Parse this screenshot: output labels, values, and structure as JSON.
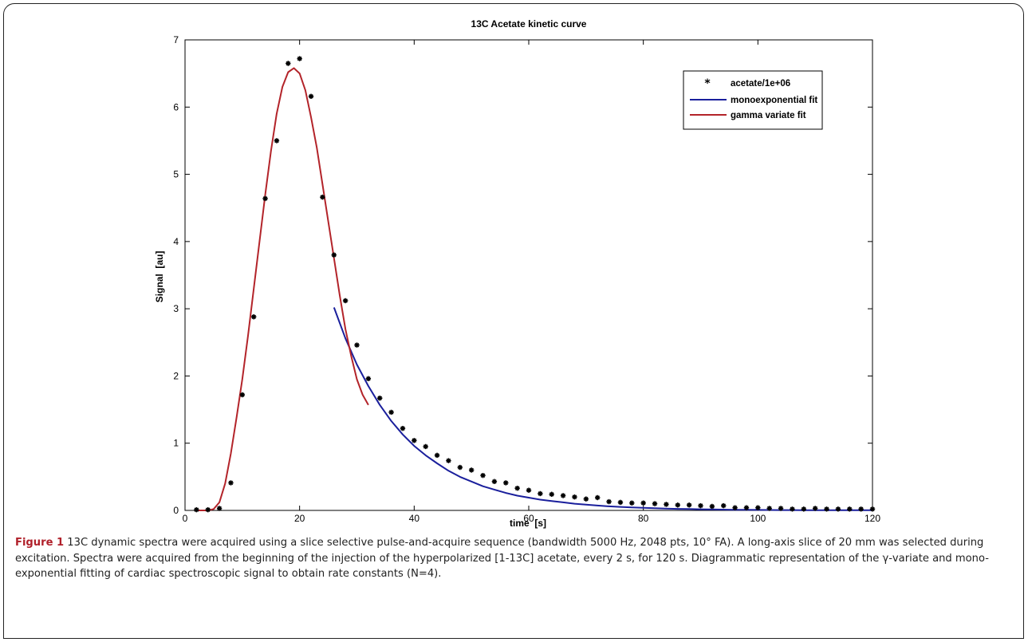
{
  "chart_data": {
    "type": "line",
    "title": "13C Acetate kinetic curve",
    "xlabel": "time  [s]",
    "ylabel": "Signal  [au]",
    "xlim": [
      0,
      120
    ],
    "ylim": [
      0,
      7
    ],
    "xticks": [
      "0",
      "20",
      "40",
      "60",
      "80",
      "100",
      "120"
    ],
    "yticks": [
      "0",
      "1",
      "2",
      "3",
      "4",
      "5",
      "6",
      "7"
    ],
    "grid": false,
    "legend_position": "top-right",
    "series": [
      {
        "name": "acetate/1e+06",
        "kind": "scatter",
        "marker": "asterisk",
        "color": "#000000",
        "x": [
          2,
          4,
          6,
          8,
          10,
          12,
          14,
          16,
          18,
          20,
          22,
          24,
          26,
          28,
          30,
          32,
          34,
          36,
          38,
          40,
          42,
          44,
          46,
          48,
          50,
          52,
          54,
          56,
          58,
          60,
          62,
          64,
          66,
          68,
          70,
          72,
          74,
          76,
          78,
          80,
          82,
          84,
          86,
          88,
          90,
          92,
          94,
          96,
          98,
          100,
          102,
          104,
          106,
          108,
          110,
          112,
          114,
          116,
          118,
          120
        ],
        "y": [
          0.01,
          0.01,
          0.03,
          0.41,
          1.72,
          2.88,
          4.64,
          5.5,
          6.65,
          6.72,
          6.16,
          4.66,
          3.8,
          3.12,
          2.46,
          1.96,
          1.67,
          1.46,
          1.22,
          1.04,
          0.95,
          0.82,
          0.74,
          0.64,
          0.6,
          0.52,
          0.43,
          0.41,
          0.33,
          0.3,
          0.25,
          0.24,
          0.22,
          0.2,
          0.17,
          0.19,
          0.13,
          0.12,
          0.11,
          0.11,
          0.1,
          0.09,
          0.08,
          0.08,
          0.07,
          0.06,
          0.07,
          0.04,
          0.04,
          0.04,
          0.03,
          0.03,
          0.02,
          0.02,
          0.03,
          0.02,
          0.02,
          0.02,
          0.02,
          0.02
        ]
      },
      {
        "name": "monoexponential fit",
        "kind": "line",
        "color": "#1a1f9c",
        "x": [
          26,
          28,
          30,
          32,
          34,
          36,
          38,
          40,
          42,
          44,
          46,
          48,
          50,
          52,
          54,
          56,
          58,
          60,
          62,
          64,
          66,
          68,
          70,
          72,
          74,
          76,
          78,
          80,
          82,
          84,
          86,
          88,
          90,
          92,
          94,
          96,
          98,
          100,
          102,
          104,
          106,
          108,
          110,
          112,
          114,
          116,
          118,
          120
        ],
        "y": [
          3.02,
          2.56,
          2.17,
          1.85,
          1.57,
          1.33,
          1.13,
          0.96,
          0.82,
          0.7,
          0.59,
          0.5,
          0.43,
          0.36,
          0.31,
          0.26,
          0.22,
          0.19,
          0.16,
          0.14,
          0.12,
          0.1,
          0.085,
          0.072,
          0.061,
          0.052,
          0.044,
          0.038,
          0.032,
          0.027,
          0.023,
          0.02,
          0.017,
          0.014,
          0.012,
          0.01,
          0.009,
          0.007,
          0.006,
          0.005,
          0.005,
          0.004,
          0.003,
          0.003,
          0.002,
          0.002,
          0.002,
          0.002
        ]
      },
      {
        "name": "gamma variate fit",
        "kind": "line",
        "color": "#b3242a",
        "x": [
          2,
          4,
          5,
          6,
          7,
          8,
          9,
          10,
          11,
          12,
          13,
          14,
          15,
          16,
          17,
          18,
          19,
          20,
          21,
          22,
          23,
          24,
          25,
          26,
          27,
          28,
          29,
          30,
          31,
          32
        ],
        "y": [
          0,
          0,
          0.02,
          0.12,
          0.4,
          0.85,
          1.38,
          1.95,
          2.6,
          3.3,
          4.0,
          4.7,
          5.35,
          5.9,
          6.3,
          6.52,
          6.58,
          6.5,
          6.25,
          5.85,
          5.4,
          4.85,
          4.3,
          3.75,
          3.2,
          2.7,
          2.3,
          1.95,
          1.72,
          1.57
        ]
      }
    ]
  },
  "caption": {
    "label": "Figure 1",
    "text": " 13C dynamic spectra were acquired using a slice selective pulse-and-acquire sequence (bandwidth 5000 Hz, 2048 pts, 10° FA). A long-axis slice of 20 mm was selected during excitation. Spectra were acquired from the beginning of the injection of the hyperpolarized [1-13C] acetate, every 2 s, for 120 s. Diagrammatic representation of the γ-variate and mono-exponential fitting of cardiac spectroscopic signal to obtain rate constants (N=4)."
  }
}
